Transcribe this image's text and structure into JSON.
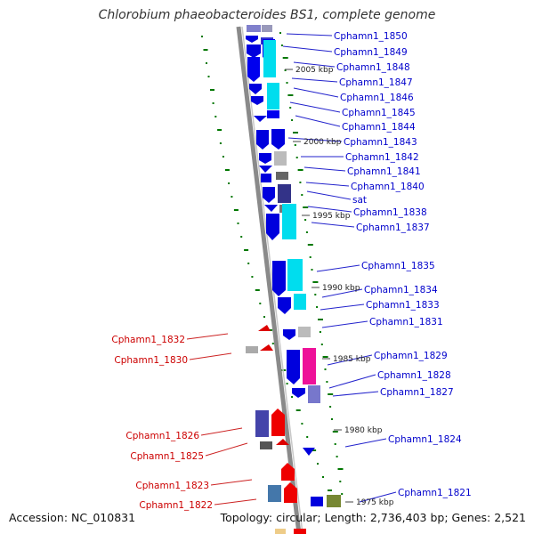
{
  "title": "Chlorobium phaeobacteroides BS1, complete genome",
  "accession": "Accession: NC_010831",
  "topology": "Topology: circular; Length: 2,736,403 bp; Genes: 2,521",
  "colors": {
    "forward_gene": "#0000dd",
    "reverse_gene": "#dd0000",
    "backbone": "#888888",
    "gc_dots": "#007700",
    "cyan_box": "#00ddee",
    "label_forward": "#0000cc",
    "label_reverse": "#cc0000"
  },
  "kbp_ticks": [
    "2005 kbp",
    "2000 kbp",
    "1995 kbp",
    "1990 kbp",
    "1985 kbp",
    "1980 kbp",
    "1975 kbp"
  ],
  "right_genes": [
    "Cphamn1_1850",
    "Cphamn1_1849",
    "Cphamn1_1848",
    "Cphamn1_1847",
    "Cphamn1_1846",
    "Cphamn1_1845",
    "Cphamn1_1844",
    "Cphamn1_1843",
    "Cphamn1_1842",
    "Cphamn1_1841",
    "Cphamn1_1840",
    "sat",
    "Cphamn1_1838",
    "Cphamn1_1837",
    "Cphamn1_1835",
    "Cphamn1_1834",
    "Cphamn1_1833",
    "Cphamn1_1831",
    "Cphamn1_1829",
    "Cphamn1_1828",
    "Cphamn1_1827",
    "Cphamn1_1824",
    "Cphamn1_1821"
  ],
  "left_genes": [
    "Cphamn1_1832",
    "Cphamn1_1830",
    "Cphamn1_1826",
    "Cphamn1_1825",
    "Cphamn1_1823",
    "Cphamn1_1822"
  ]
}
